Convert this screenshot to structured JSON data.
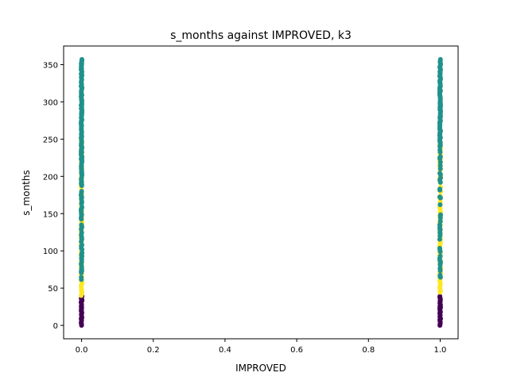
{
  "chart_data": {
    "type": "scatter",
    "title": "s_months against IMPROVED, k3",
    "xlabel": "IMPROVED",
    "ylabel": "s_months",
    "xlim": [
      -0.05,
      1.05
    ],
    "ylim": [
      -18,
      375
    ],
    "xticks": [
      0.0,
      0.2,
      0.4,
      0.6,
      0.8,
      1.0
    ],
    "xtick_labels": [
      "0.0",
      "0.2",
      "0.4",
      "0.6",
      "0.8",
      "1.0"
    ],
    "yticks": [
      0,
      50,
      100,
      150,
      200,
      250,
      300,
      350
    ],
    "ytick_labels": [
      "0",
      "50",
      "100",
      "150",
      "200",
      "250",
      "300",
      "350"
    ],
    "grid": false,
    "legend": "none",
    "colors": {
      "cluster_0": "#440154",
      "cluster_1": "#21918c",
      "cluster_2": "#fde725"
    },
    "series": [
      {
        "cluster": 0,
        "color": "#440154",
        "x": [
          0,
          1
        ],
        "y_range": [
          0,
          40
        ]
      },
      {
        "cluster": 2,
        "color": "#fde725",
        "x": [
          0,
          1
        ],
        "y_range": [
          40,
          250
        ]
      },
      {
        "cluster": 1,
        "color": "#21918c",
        "x": [
          0,
          1
        ],
        "y_range": [
          60,
          357
        ]
      }
    ]
  }
}
